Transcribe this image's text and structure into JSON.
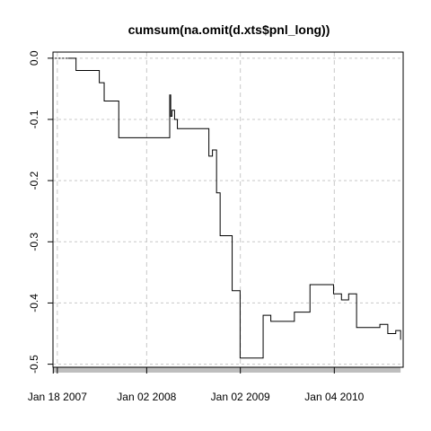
{
  "chart_data": {
    "type": "line",
    "title": "cumsum(na.omit(d.xts$pnl_long))",
    "xlabel": "",
    "ylabel": "",
    "x_tick_labels": [
      "Jan 18 2007",
      "Jan 02 2008",
      "Jan 02 2009",
      "Jan 04 2010"
    ],
    "x_tick_dates": [
      "2007-01-18",
      "2008-01-02",
      "2009-01-02",
      "2010-01-04"
    ],
    "x_range": [
      "2007-01-01",
      "2010-09-30"
    ],
    "y_ticks": [
      0.0,
      -0.1,
      -0.2,
      -0.3,
      -0.4,
      -0.5
    ],
    "y_tick_labels": [
      "0.0",
      "-0.1",
      "-0.2",
      "-0.3",
      "-0.4",
      "-0.5"
    ],
    "ylim": [
      -0.505,
      0.01
    ],
    "grid": true,
    "line_color": "#000000",
    "grid_color": "#c8c8c8",
    "series": [
      {
        "x": [
          "2007-01-02",
          "2007-02-01",
          "2007-03-01",
          "2007-04-01",
          "2007-05-01",
          "2007-06-01",
          "2007-07-01",
          "2007-07-20",
          "2007-08-01",
          "2007-09-15",
          "2007-10-01",
          "2007-10-15",
          "2007-11-01",
          "2007-12-01",
          "2008-01-01",
          "2008-02-01",
          "2008-03-01",
          "2008-04-01",
          "2008-04-05",
          "2008-04-10",
          "2008-04-20",
          "2008-05-01",
          "2008-06-01",
          "2008-07-01",
          "2008-08-01",
          "2008-09-01",
          "2008-09-15",
          "2008-10-01",
          "2008-10-15",
          "2008-11-01",
          "2008-12-01",
          "2009-01-01",
          "2009-02-01",
          "2009-03-01",
          "2009-04-01",
          "2009-05-01",
          "2009-06-01",
          "2009-07-01",
          "2009-08-01",
          "2009-09-01",
          "2009-10-01",
          "2009-11-01",
          "2009-12-01",
          "2010-01-01",
          "2010-02-01",
          "2010-03-01",
          "2010-04-01",
          "2010-05-01",
          "2010-06-01",
          "2010-07-01",
          "2010-08-01",
          "2010-09-01",
          "2010-09-20"
        ],
        "y": [
          0.0,
          0.0,
          0.0,
          -0.02,
          -0.02,
          -0.02,
          -0.04,
          -0.07,
          -0.07,
          -0.13,
          -0.13,
          -0.13,
          -0.13,
          -0.13,
          -0.13,
          -0.13,
          -0.13,
          -0.06,
          -0.095,
          -0.085,
          -0.1,
          -0.115,
          -0.115,
          -0.115,
          -0.115,
          -0.16,
          -0.15,
          -0.22,
          -0.29,
          -0.29,
          -0.38,
          -0.49,
          -0.49,
          -0.49,
          -0.42,
          -0.43,
          -0.43,
          -0.43,
          -0.415,
          -0.415,
          -0.37,
          -0.37,
          -0.37,
          -0.385,
          -0.395,
          -0.385,
          -0.44,
          -0.44,
          -0.44,
          -0.435,
          -0.45,
          -0.445,
          -0.46
        ]
      }
    ]
  }
}
